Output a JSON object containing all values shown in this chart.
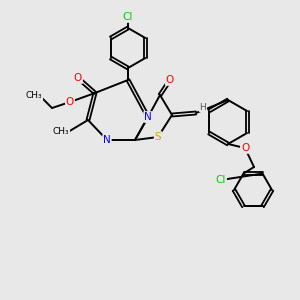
{
  "bg_color": "#e8e8e8",
  "atom_colors": {
    "C": "#000000",
    "N": "#0000ff",
    "O": "#ff0000",
    "S": "#ccaa00",
    "Cl": "#00cc00",
    "H": "#555555"
  },
  "figsize": [
    3.0,
    3.0
  ],
  "dpi": 100
}
